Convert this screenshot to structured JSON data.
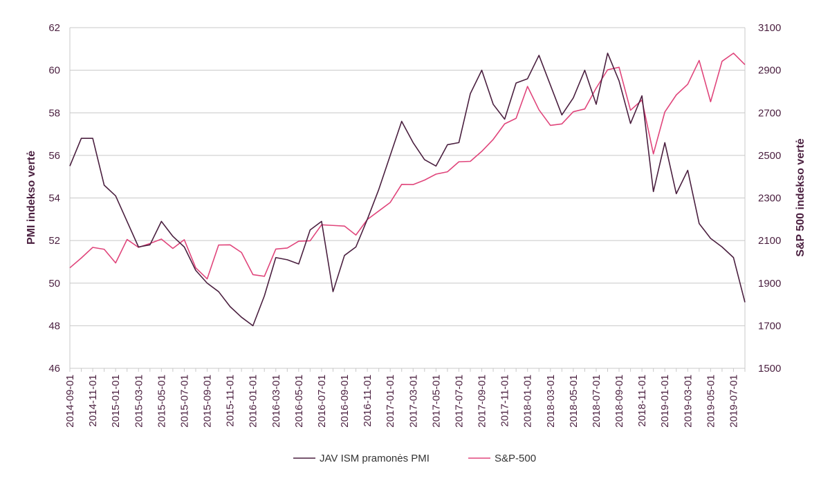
{
  "colors": {
    "pmi": "#4a1f3f",
    "sp500": "#e0457b",
    "grid": "#c8c8c8",
    "text": "#4a1f3f"
  },
  "chart_data": {
    "type": "line",
    "title": "",
    "ylabel_left": "PMI indekso vertė",
    "ylabel_right": "S&P 500 indekso vertė",
    "ylim_left": [
      46,
      62
    ],
    "ylim_right": [
      1500,
      3100
    ],
    "yticks_left": [
      "46",
      "48",
      "50",
      "52",
      "54",
      "56",
      "58",
      "60",
      "62"
    ],
    "yticks_right": [
      "1500",
      "1700",
      "1900",
      "2100",
      "2300",
      "2500",
      "2700",
      "2900",
      "3100"
    ],
    "grid": true,
    "legend_position": "bottom",
    "x_tick_labels": [
      "2014-09-01",
      "2014-11-01",
      "2015-01-01",
      "2015-03-01",
      "2015-05-01",
      "2015-07-01",
      "2015-09-01",
      "2015-11-01",
      "2016-01-01",
      "2016-03-01",
      "2016-05-01",
      "2016-07-01",
      "2016-09-01",
      "2016-11-01",
      "2017-01-01",
      "2017-03-01",
      "2017-05-01",
      "2017-07-01",
      "2017-09-01",
      "2017-11-01",
      "2018-01-01",
      "2018-03-01",
      "2018-05-01",
      "2018-07-01",
      "2018-09-01",
      "2018-11-01",
      "2019-01-01",
      "2019-03-01",
      "2019-05-01",
      "2019-07-01"
    ],
    "x": [
      "2014-09",
      "2014-10",
      "2014-11",
      "2014-12",
      "2015-01",
      "2015-02",
      "2015-03",
      "2015-04",
      "2015-05",
      "2015-06",
      "2015-07",
      "2015-08",
      "2015-09",
      "2015-10",
      "2015-11",
      "2015-12",
      "2016-01",
      "2016-02",
      "2016-03",
      "2016-04",
      "2016-05",
      "2016-06",
      "2016-07",
      "2016-08",
      "2016-09",
      "2016-10",
      "2016-11",
      "2016-12",
      "2017-01",
      "2017-02",
      "2017-03",
      "2017-04",
      "2017-05",
      "2017-06",
      "2017-07",
      "2017-08",
      "2017-09",
      "2017-10",
      "2017-11",
      "2017-12",
      "2018-01",
      "2018-02",
      "2018-03",
      "2018-04",
      "2018-05",
      "2018-06",
      "2018-07",
      "2018-08",
      "2018-09",
      "2018-10",
      "2018-11",
      "2018-12",
      "2019-01",
      "2019-02",
      "2019-03",
      "2019-04",
      "2019-05",
      "2019-06",
      "2019-07",
      "2019-08"
    ],
    "series": [
      {
        "name": "JAV ISM pramonės PMI",
        "axis": "left",
        "values": [
          55.5,
          56.8,
          56.8,
          54.6,
          54.1,
          52.9,
          51.7,
          51.8,
          52.9,
          52.2,
          51.7,
          50.6,
          50.0,
          49.6,
          48.9,
          48.4,
          48.0,
          49.4,
          51.2,
          51.1,
          50.9,
          52.5,
          52.9,
          49.6,
          51.3,
          51.7,
          53.0,
          54.4,
          56.0,
          57.6,
          56.6,
          55.8,
          55.5,
          56.5,
          56.6,
          58.9,
          60.0,
          58.4,
          57.7,
          59.4,
          59.6,
          60.7,
          59.3,
          57.9,
          58.7,
          60.0,
          58.4,
          60.8,
          59.5,
          57.5,
          58.8,
          54.3,
          56.6,
          54.2,
          55.3,
          52.8,
          52.1,
          51.7,
          51.2,
          49.1
        ]
      },
      {
        "name": "S&P-500",
        "axis": "right",
        "values": [
          1972,
          2018,
          2068,
          2059,
          1995,
          2105,
          2068,
          2086,
          2107,
          2063,
          2104,
          1972,
          1920,
          2079,
          2080,
          2044,
          1940,
          1932,
          2060,
          2065,
          2097,
          2099,
          2174,
          2171,
          2168,
          2126,
          2199,
          2239,
          2279,
          2364,
          2363,
          2384,
          2412,
          2423,
          2470,
          2472,
          2519,
          2575,
          2648,
          2674,
          2824,
          2714,
          2641,
          2648,
          2705,
          2718,
          2816,
          2902,
          2914,
          2712,
          2760,
          2507,
          2704,
          2784,
          2834,
          2946,
          2752,
          2942,
          2980,
          2926
        ]
      }
    ]
  }
}
